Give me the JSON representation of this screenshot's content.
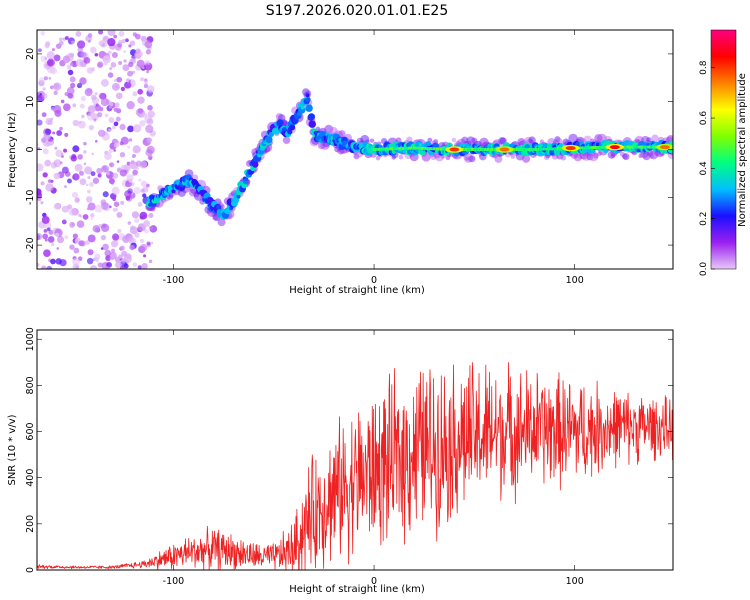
{
  "figure_title": "S197.2026.020.01.01.E25",
  "chart_data": [
    {
      "type": "heatmap",
      "title": "S197.2026.020.01.01.E25",
      "xlabel": "Height of straight line (km)",
      "ylabel": "Frequency (Hz)",
      "xlim": [
        -168,
        149
      ],
      "ylim": [
        -25,
        25
      ],
      "xticks": [
        -100,
        0,
        100
      ],
      "yticks": [
        -20,
        -10,
        0,
        10,
        20
      ],
      "x_tick_labels": [
        "-100",
        "0",
        "100"
      ],
      "y_tick_labels": [
        "-20",
        "-10",
        "0",
        "10",
        "20"
      ],
      "colorbar": {
        "label": "Normalized spectral amplitude",
        "range": [
          0,
          0.95
        ],
        "ticks": [
          0.0,
          0.2,
          0.4,
          0.6,
          0.8
        ],
        "tick_labels": [
          "0.0",
          "0.2",
          "0.4",
          "0.6",
          "0.8"
        ],
        "colors": [
          "#e8c8f8",
          "#9a20f0",
          "#1a10ff",
          "#00bfff",
          "#00ff80",
          "#80ff00",
          "#ffff00",
          "#ff8000",
          "#ff0000",
          "#ff0080"
        ]
      },
      "noise_region": {
        "x_range": [
          -168,
          -110
        ],
        "freq_range": [
          -25,
          25
        ]
      },
      "ridge": {
        "x": [
          -112,
          -100,
          -92,
          -86,
          -80,
          -75,
          -70,
          -65,
          -60,
          -55,
          -50,
          -47,
          -44,
          -40,
          -36,
          -33,
          -30,
          -25,
          -20,
          -10,
          0,
          20,
          40,
          60,
          80,
          100,
          120,
          149
        ],
        "freq": [
          -11,
          -8,
          -6.5,
          -9,
          -12,
          -13.5,
          -11,
          -7,
          -3,
          1,
          4,
          5.5,
          3,
          6,
          9,
          11,
          3,
          2.5,
          2,
          0.5,
          0,
          0.3,
          0,
          0,
          0,
          0.3,
          0.5,
          0.5
        ]
      },
      "hotspots": [
        {
          "x": 40,
          "freq": 0,
          "amplitude": 0.85
        },
        {
          "x": 65,
          "freq": 0,
          "amplitude": 0.8
        },
        {
          "x": 98,
          "freq": 0.3,
          "amplitude": 0.85
        },
        {
          "x": 120,
          "freq": 0.5,
          "amplitude": 0.9
        },
        {
          "x": 145,
          "freq": 0.5,
          "amplitude": 0.8
        }
      ]
    },
    {
      "type": "line",
      "xlabel": "Height of straight line (km)",
      "ylabel": "SNR (10 * v/v)",
      "xlim": [
        -168,
        149
      ],
      "ylim": [
        0,
        1040
      ],
      "xticks": [
        -100,
        0,
        100
      ],
      "yticks": [
        0,
        200,
        400,
        600,
        800,
        1000
      ],
      "x_tick_labels": [
        "-100",
        "0",
        "100"
      ],
      "y_tick_labels": [
        "0",
        "200",
        "400",
        "600",
        "800",
        "1000"
      ],
      "color": "#ee2222",
      "series": [
        {
          "name": "SNR",
          "x": [
            -168,
            -150,
            -130,
            -115,
            -100,
            -90,
            -80,
            -70,
            -60,
            -50,
            -40,
            -35,
            -30,
            -20,
            -10,
            0,
            10,
            20,
            30,
            40,
            50,
            60,
            80,
            100,
            120,
            140,
            149
          ],
          "mean": [
            15,
            12,
            12,
            25,
            60,
            80,
            90,
            80,
            60,
            55,
            90,
            180,
            250,
            330,
            390,
            430,
            470,
            520,
            540,
            560,
            580,
            600,
            610,
            600,
            620,
            620,
            610
          ],
          "amp": [
            10,
            8,
            8,
            20,
            70,
            90,
            110,
            90,
            70,
            70,
            150,
            250,
            300,
            340,
            380,
            400,
            420,
            430,
            430,
            400,
            380,
            350,
            300,
            280,
            200,
            160,
            150
          ]
        }
      ]
    }
  ]
}
